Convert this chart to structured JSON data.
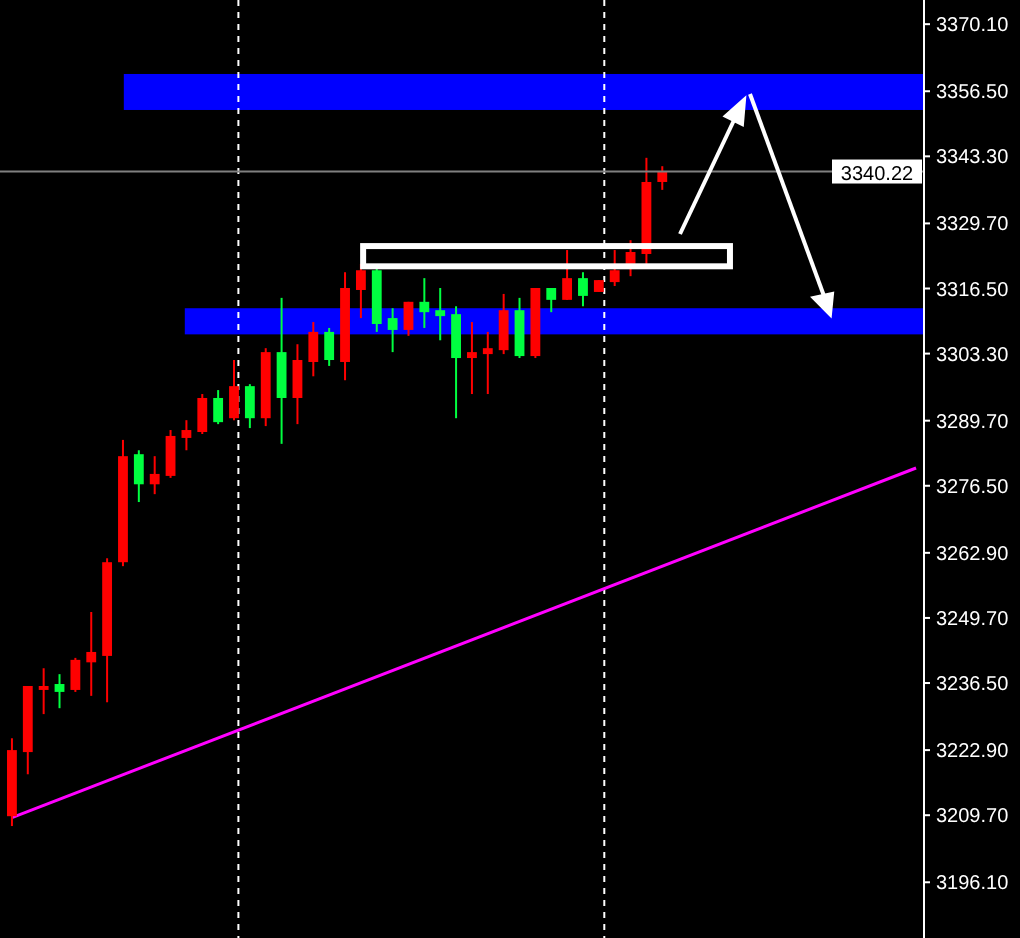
{
  "chart_data": {
    "type": "candlestick",
    "categories": [
      null,
      null,
      null,
      null,
      null,
      null,
      null,
      null,
      null,
      null,
      null,
      null,
      null,
      null,
      null,
      null,
      null,
      null,
      null,
      null,
      null,
      null,
      null,
      null,
      null,
      null,
      null,
      null,
      null,
      null,
      null,
      null,
      null,
      null,
      null,
      null,
      null,
      null,
      null,
      null,
      null,
      null,
      null,
      null,
      null,
      null,
      null,
      null,
      null,
      null,
      null,
      null,
      null,
      null,
      null,
      null,
      null,
      null
    ],
    "ohlc": [
      [
        3209.5,
        3225.3,
        3207.5,
        3222.9
      ],
      [
        3222.5,
        3235.9,
        3218.0,
        3235.9
      ],
      [
        3235.1,
        3239.5,
        3230.2,
        3235.9
      ],
      [
        3236.3,
        3238.3,
        3231.4,
        3234.7
      ],
      [
        3235.1,
        3241.6,
        3234.7,
        3241.2
      ],
      [
        3240.7,
        3250.9,
        3233.9,
        3242.8
      ],
      [
        3242.0,
        3261.8,
        3232.6,
        3261.0
      ],
      [
        3261.0,
        3285.8,
        3260.2,
        3282.5
      ],
      [
        3282.9,
        3283.7,
        3273.2,
        3276.8
      ],
      [
        3276.8,
        3282.5,
        3274.8,
        3278.9
      ],
      [
        3278.5,
        3287.8,
        3278.1,
        3286.6
      ],
      [
        3286.2,
        3289.8,
        3283.7,
        3287.8
      ],
      [
        3287.4,
        3295.1,
        3287.0,
        3294.3
      ],
      [
        3294.3,
        3295.9,
        3289.0,
        3289.4
      ],
      [
        3290.2,
        3302.0,
        3289.8,
        3296.7
      ],
      [
        3296.7,
        3297.1,
        3288.2,
        3290.2
      ],
      [
        3290.2,
        3304.4,
        3288.6,
        3303.6
      ],
      [
        3303.6,
        3314.6,
        3285.0,
        3294.3
      ],
      [
        3294.3,
        3305.2,
        3289.0,
        3302.0
      ],
      [
        3301.6,
        3309.7,
        3298.7,
        3307.7
      ],
      [
        3307.7,
        3308.5,
        3300.8,
        3302.0
      ],
      [
        3301.6,
        3319.8,
        3297.9,
        3316.6
      ],
      [
        3316.2,
        3321.5,
        3310.5,
        3320.2
      ],
      [
        3320.2,
        3321.1,
        3307.7,
        3309.3
      ],
      [
        3310.5,
        3312.5,
        3303.6,
        3308.1
      ],
      [
        3308.1,
        3313.8,
        3306.9,
        3313.8
      ],
      [
        3313.8,
        3318.6,
        3308.5,
        3311.7
      ],
      [
        3312.1,
        3316.6,
        3306.0,
        3310.9
      ],
      [
        3311.3,
        3312.9,
        3290.2,
        3302.4
      ],
      [
        3302.4,
        3309.7,
        3295.1,
        3303.6
      ],
      [
        3303.2,
        3307.7,
        3295.1,
        3304.4
      ],
      [
        3304.0,
        3315.4,
        3303.2,
        3312.1
      ],
      [
        3312.1,
        3314.6,
        3302.4,
        3302.8
      ],
      [
        3302.8,
        3316.6,
        3302.4,
        3316.6
      ],
      [
        3316.6,
        3316.6,
        3311.7,
        3314.2
      ],
      [
        3314.2,
        3324.3,
        3314.2,
        3318.6
      ],
      [
        3318.6,
        3319.8,
        3312.9,
        3315.0
      ],
      [
        3315.8,
        3318.2,
        3315.8,
        3318.2
      ],
      [
        3317.8,
        3324.3,
        3317.0,
        3320.2
      ],
      [
        3321.5,
        3326.3,
        3319.0,
        3323.9
      ],
      [
        3323.5,
        3343.0,
        3321.5,
        3338.1
      ],
      [
        3338.1,
        3341.3,
        3336.5,
        3340.22
      ],
      null,
      null,
      null,
      null,
      null,
      null,
      null,
      null,
      null,
      null,
      null,
      null,
      null,
      null,
      null,
      null
    ],
    "colors": [
      "#ff0000",
      "#ff0000",
      "#ff0000",
      "#00ff40",
      "#ff0000",
      "#ff0000",
      "#ff0000",
      "#ff0000",
      "#00ff40",
      "#ff0000",
      "#ff0000",
      "#ff0000",
      "#ff0000",
      "#00ff40",
      "#ff0000",
      "#00ff40",
      "#ff0000",
      "#00ff40",
      "#ff0000",
      "#ff0000",
      "#00ff40",
      "#ff0000",
      "#ff0000",
      "#00ff40",
      "#00ff40",
      "#ff0000",
      "#00ff40",
      "#00ff40",
      "#00ff40",
      "#ff0000",
      "#ff0000",
      "#ff0000",
      "#00ff40",
      "#ff0000",
      "#00ff40",
      "#ff0000",
      "#00ff40",
      "#ff0000",
      "#ff0000",
      "#ff0000",
      "#ff0000",
      "#ff0000",
      null,
      null,
      null,
      null,
      null,
      null,
      null,
      null,
      null,
      null,
      null,
      null,
      null,
      null,
      null,
      null
    ],
    "series": [
      {
        "type": "line",
        "color": "#ff00ff",
        "values": [
          3209.2,
          null,
          null,
          null,
          null,
          null,
          null,
          null,
          null,
          null,
          null,
          null,
          null,
          null,
          null,
          null,
          null,
          null,
          null,
          null,
          null,
          null,
          null,
          null,
          null,
          null,
          null,
          null,
          null,
          null,
          null,
          null,
          null,
          null,
          null,
          null,
          null,
          null,
          null,
          null,
          null,
          null,
          null,
          null,
          null,
          null,
          null,
          null,
          null,
          null,
          null,
          null,
          null,
          null,
          null,
          null,
          null,
          3280.1
        ]
      }
    ],
    "ylim": [
      3184.8,
      3375.0
    ],
    "yticks": [
      {
        "value": 3370.1,
        "label": "3370.10"
      },
      {
        "value": 3356.5,
        "label": "3356.50"
      },
      {
        "value": 3343.3,
        "label": "3343.30"
      },
      {
        "value": 3329.7,
        "label": "3329.70"
      },
      {
        "value": 3316.5,
        "label": "3316.50"
      },
      {
        "value": 3303.3,
        "label": "3303.30"
      },
      {
        "value": 3289.7,
        "label": "3289.70"
      },
      {
        "value": 3276.5,
        "label": "3276.50"
      },
      {
        "value": 3262.9,
        "label": "3262.90"
      },
      {
        "value": 3249.7,
        "label": "3249.70"
      },
      {
        "value": 3236.5,
        "label": "3236.50"
      },
      {
        "value": 3222.9,
        "label": "3222.90"
      },
      {
        "value": 3209.7,
        "label": "3209.70"
      },
      {
        "value": 3196.1,
        "label": "3196.10"
      }
    ],
    "ref_lines": [
      {
        "axis": "y",
        "value": 3340.22,
        "label": "3340.22",
        "color": "#808080"
      }
    ],
    "bands": [
      {
        "axis": "y",
        "from": 3352.7,
        "to": 3360.0,
        "color": "#0000ff"
      },
      {
        "axis": "y",
        "from": 3307.2,
        "to": 3312.5,
        "color": "#0000ff"
      }
    ],
    "tick_labels": "y",
    "grid": false
  }
}
